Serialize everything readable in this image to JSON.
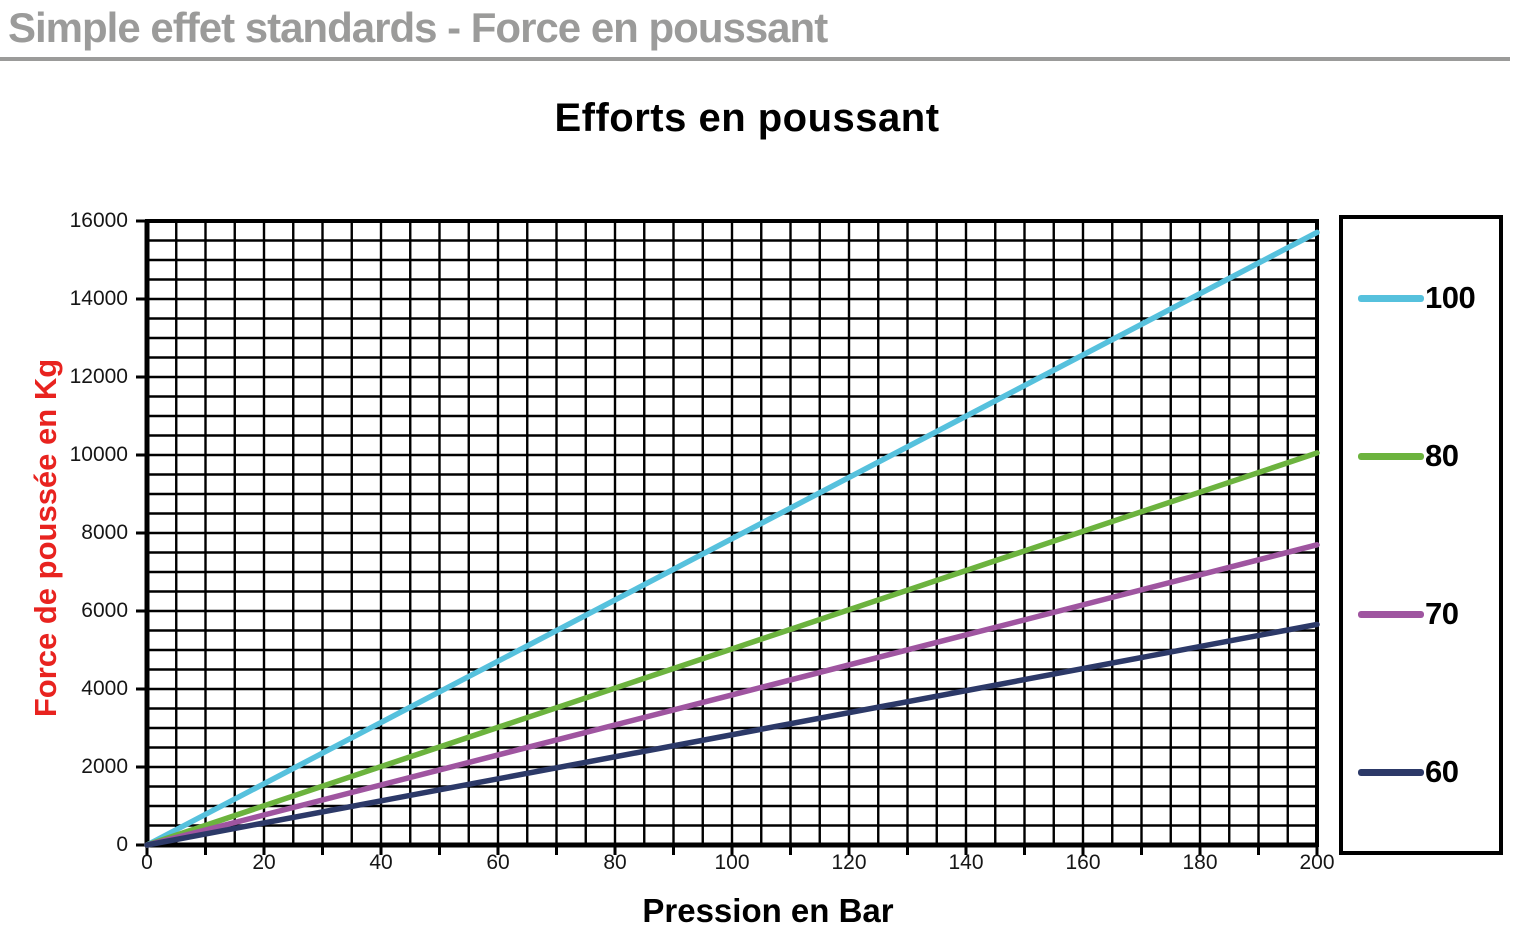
{
  "header": {
    "title": "Simple effet standards - Force en poussant"
  },
  "colors": {
    "header_gray": "#9b9b9a",
    "ylabel_red": "#e8231f",
    "grid_black": "#000000"
  },
  "chart_data": {
    "type": "line",
    "title": "Efforts en poussant",
    "xlabel": "Pression en Bar",
    "ylabel": "Force de poussée en Kg",
    "xlim": [
      0,
      200
    ],
    "ylim": [
      0,
      16000
    ],
    "x_tick_labels": [
      0,
      20,
      40,
      60,
      80,
      100,
      120,
      140,
      160,
      180,
      200
    ],
    "y_tick_labels": [
      0,
      2000,
      4000,
      6000,
      8000,
      10000,
      12000,
      14000,
      16000
    ],
    "x_minor_step": 5,
    "y_minor_step": 500,
    "x_tick_mark_step": 10,
    "y_tick_mark_step": 2000,
    "grid": "minor grid on, black graph-paper style",
    "legend_position": "right-outside",
    "series": [
      {
        "name": "100",
        "color": "#56c1dd",
        "x": [
          0,
          50,
          100,
          150,
          200
        ],
        "y": [
          0,
          3927,
          7854,
          11781,
          15708
        ]
      },
      {
        "name": "80",
        "color": "#6cb33e",
        "x": [
          0,
          50,
          100,
          150,
          200
        ],
        "y": [
          0,
          2513,
          5027,
          7540,
          10053
        ]
      },
      {
        "name": "70",
        "color": "#9f55a0",
        "x": [
          0,
          50,
          100,
          150,
          200
        ],
        "y": [
          0,
          1924,
          3848,
          5773,
          7697
        ]
      },
      {
        "name": "60",
        "color": "#2c3968",
        "x": [
          0,
          50,
          100,
          150,
          200
        ],
        "y": [
          0,
          1414,
          2827,
          4241,
          5655
        ]
      }
    ]
  }
}
